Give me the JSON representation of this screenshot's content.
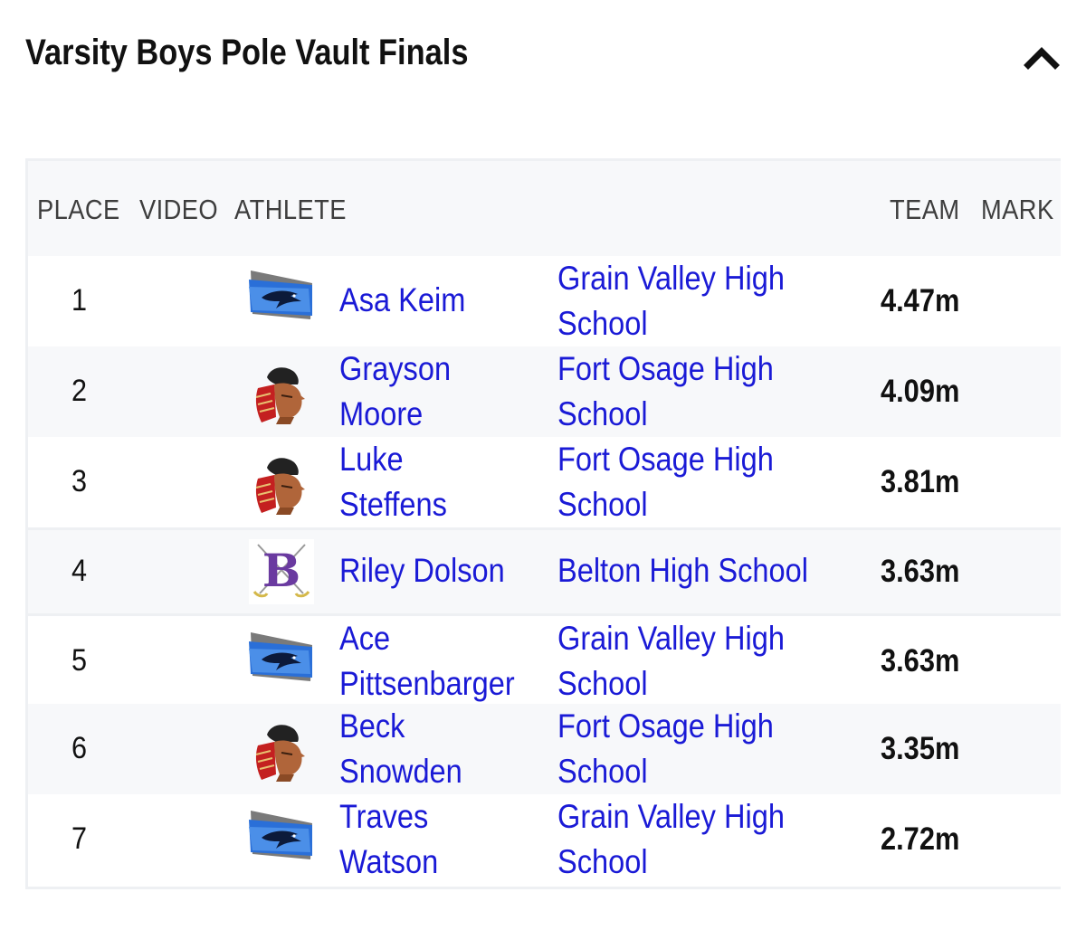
{
  "header": {
    "title": "Varsity Boys Pole Vault Finals",
    "collapse_icon": "chevron-up-icon"
  },
  "table": {
    "columns": {
      "place": "PLACE",
      "video": "VIDEO",
      "athlete": "ATHLETE",
      "team": "TEAM",
      "mark": "MARK"
    },
    "rows": [
      {
        "place": "1",
        "athlete_line1": "Asa Keim",
        "athlete_line2": "",
        "team_line1": "Grain Valley High",
        "team_line2": "School",
        "mark": "4.47m",
        "logo": "grain-valley-logo"
      },
      {
        "place": "2",
        "athlete_line1": "Grayson",
        "athlete_line2": "Moore",
        "team_line1": "Fort Osage High",
        "team_line2": "School",
        "mark": "4.09m",
        "logo": "fort-osage-logo"
      },
      {
        "place": "3",
        "athlete_line1": "Luke",
        "athlete_line2": "Steffens",
        "team_line1": "Fort Osage High",
        "team_line2": "School",
        "mark": "3.81m",
        "logo": "fort-osage-logo"
      },
      {
        "place": "4",
        "athlete_line1": "Riley Dolson",
        "athlete_line2": "",
        "team_line1": "Belton High School",
        "team_line2": "",
        "mark": "3.63m",
        "logo": "belton-logo"
      },
      {
        "place": "5",
        "athlete_line1": "Ace",
        "athlete_line2": "Pittsenbarger",
        "team_line1": "Grain Valley High",
        "team_line2": "School",
        "mark": "3.63m",
        "logo": "grain-valley-logo"
      },
      {
        "place": "6",
        "athlete_line1": "Beck",
        "athlete_line2": "Snowden",
        "team_line1": "Fort Osage High",
        "team_line2": "School",
        "mark": "3.35m",
        "logo": "fort-osage-logo"
      },
      {
        "place": "7",
        "athlete_line1": "Traves",
        "athlete_line2": "Watson",
        "team_line1": "Grain Valley High",
        "team_line2": "School",
        "mark": "2.72m",
        "logo": "grain-valley-logo"
      }
    ]
  },
  "colors": {
    "link": "#1a1ad6",
    "text": "#111111",
    "header_bg": "#f7f8fa",
    "border": "#eef0f3"
  }
}
